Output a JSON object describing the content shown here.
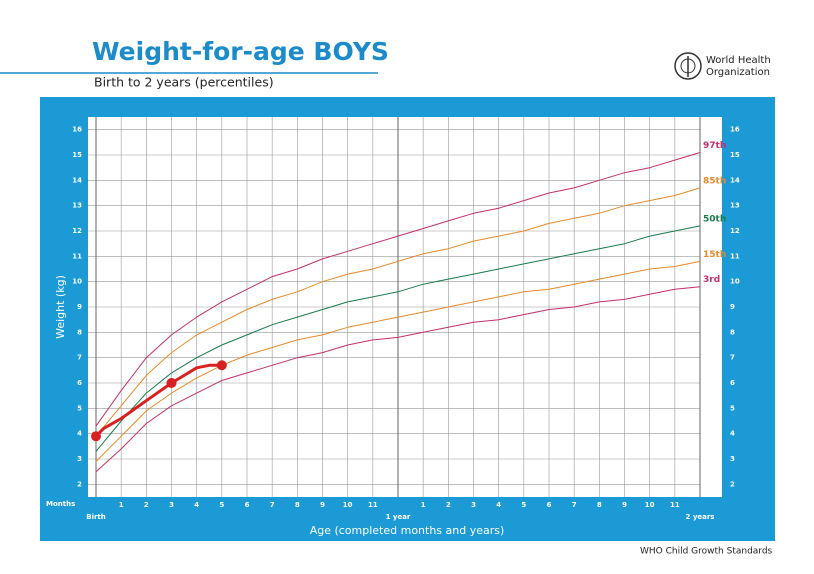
{
  "chart_data": {
    "type": "line",
    "title": "Weight-for-age BOYS",
    "subtitle": "Birth to 2 years (percentiles)",
    "organization": [
      "World Health",
      "Organization"
    ],
    "ylabel": "Weight (kg)",
    "xlabel": "Age (completed months and years)",
    "x_unit_label": "Months",
    "footer": "WHO Child Growth Standards",
    "xlim": [
      0,
      24
    ],
    "ylim": [
      1.5,
      16.5
    ],
    "yticks": [
      2,
      3,
      4,
      5,
      6,
      7,
      8,
      9,
      10,
      11,
      12,
      13,
      14,
      15,
      16
    ],
    "xticks": [
      {
        "value": 0,
        "label": "Birth"
      },
      1,
      2,
      3,
      4,
      5,
      6,
      7,
      8,
      9,
      10,
      11,
      {
        "value": 12,
        "label": "1 year"
      },
      {
        "value": 13,
        "label": "1"
      },
      {
        "value": 14,
        "label": "2"
      },
      {
        "value": 15,
        "label": "3"
      },
      {
        "value": 16,
        "label": "4"
      },
      {
        "value": 17,
        "label": "5"
      },
      {
        "value": 18,
        "label": "6"
      },
      {
        "value": 19,
        "label": "7"
      },
      {
        "value": 20,
        "label": "8"
      },
      {
        "value": 21,
        "label": "9"
      },
      {
        "value": 22,
        "label": "10"
      },
      {
        "value": 23,
        "label": "11"
      },
      {
        "value": 24,
        "label": "2 years"
      }
    ],
    "grid": true,
    "x": [
      0,
      1,
      2,
      3,
      4,
      5,
      6,
      7,
      8,
      9,
      10,
      11,
      12,
      13,
      14,
      15,
      16,
      17,
      18,
      19,
      20,
      21,
      22,
      23,
      24
    ],
    "series": [
      {
        "name": "97th",
        "color": "#c2306e",
        "values": [
          4.3,
          5.7,
          7.0,
          7.9,
          8.6,
          9.2,
          9.7,
          10.2,
          10.5,
          10.9,
          11.2,
          11.5,
          11.8,
          12.1,
          12.4,
          12.7,
          12.9,
          13.2,
          13.5,
          13.7,
          14.0,
          14.3,
          14.5,
          14.8,
          15.1
        ]
      },
      {
        "name": "85th",
        "color": "#e38b2c",
        "values": [
          3.9,
          5.1,
          6.3,
          7.2,
          7.9,
          8.4,
          8.9,
          9.3,
          9.6,
          10.0,
          10.3,
          10.5,
          10.8,
          11.1,
          11.3,
          11.6,
          11.8,
          12.0,
          12.3,
          12.5,
          12.7,
          13.0,
          13.2,
          13.4,
          13.7
        ]
      },
      {
        "name": "50th",
        "color": "#1c7a4c",
        "values": [
          3.3,
          4.5,
          5.6,
          6.4,
          7.0,
          7.5,
          7.9,
          8.3,
          8.6,
          8.9,
          9.2,
          9.4,
          9.6,
          9.9,
          10.1,
          10.3,
          10.5,
          10.7,
          10.9,
          11.1,
          11.3,
          11.5,
          11.8,
          12.0,
          12.2
        ]
      },
      {
        "name": "15th",
        "color": "#e38b2c",
        "values": [
          2.9,
          3.9,
          4.9,
          5.6,
          6.2,
          6.7,
          7.1,
          7.4,
          7.7,
          7.9,
          8.2,
          8.4,
          8.6,
          8.8,
          9.0,
          9.2,
          9.4,
          9.6,
          9.7,
          9.9,
          10.1,
          10.3,
          10.5,
          10.6,
          10.8
        ]
      },
      {
        "name": "3rd",
        "color": "#c2306e",
        "values": [
          2.5,
          3.4,
          4.4,
          5.1,
          5.6,
          6.1,
          6.4,
          6.7,
          7.0,
          7.2,
          7.5,
          7.7,
          7.8,
          8.0,
          8.2,
          8.4,
          8.5,
          8.7,
          8.9,
          9.0,
          9.2,
          9.3,
          9.5,
          9.7,
          9.8
        ]
      }
    ],
    "child_line": {
      "color": "#d92020",
      "x": [
        0,
        0.3,
        1,
        2,
        3,
        4,
        4.5,
        5
      ],
      "values": [
        3.9,
        4.2,
        4.6,
        5.3,
        6.0,
        6.6,
        6.7,
        6.7
      ]
    },
    "child_points": {
      "color": "#d92020",
      "x": [
        0,
        3,
        5
      ],
      "values": [
        3.9,
        6.0,
        6.7
      ]
    }
  }
}
